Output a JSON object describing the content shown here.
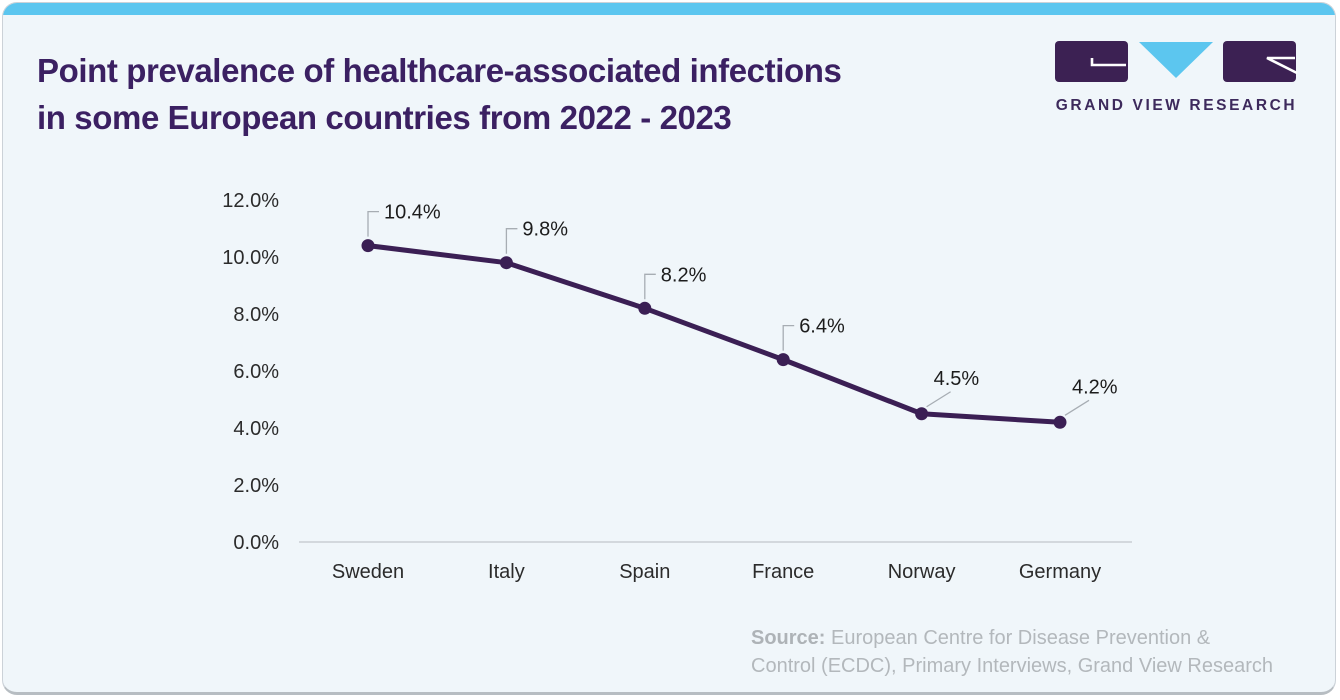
{
  "header": {
    "title": {
      "line1": "Point prevalence of healthcare-associated infections",
      "line2": "in some European countries from 2022 - 2023"
    },
    "logo": {
      "text": "GRAND VIEW RESEARCH"
    }
  },
  "chart_data": {
    "type": "line",
    "title": "Point prevalence of healthcare-associated infections in some European countries from 2022 - 2023",
    "categories": [
      "Sweden",
      "Italy",
      "Spain",
      "France",
      "Norway",
      "Germany"
    ],
    "values": [
      10.4,
      9.8,
      8.2,
      6.4,
      4.5,
      4.2
    ],
    "value_labels": [
      "10.4%",
      "9.8%",
      "8.2%",
      "6.4%",
      "4.5%",
      "4.2%"
    ],
    "y_ticks": [
      "12.0%",
      "10.0%",
      "8.0%",
      "6.0%",
      "4.0%",
      "2.0%",
      "0.0%"
    ],
    "y_tick_values": [
      12,
      10,
      8,
      6,
      4,
      2,
      0
    ],
    "ylim": [
      0,
      12
    ],
    "xlabel": "",
    "ylabel": "",
    "grid": false,
    "legend": "none",
    "label_leader_styles": [
      "elbow",
      "elbow",
      "elbow",
      "elbow",
      "diagonal",
      "diagonal"
    ],
    "line_color": "#3b1f54",
    "marker_color": "#3b1f54",
    "leader_color": "#a7adb3",
    "axis_color": "#c9ced3"
  },
  "source": {
    "line1_prefix": "Source:",
    "line1_rest": " European Centre for Disease Prevention &",
    "line2": "Control (ECDC), Primary Interviews, Grand View Research"
  },
  "colors": {
    "accent_blue": "#5cc6ef",
    "brand_purple": "#3b2062",
    "card_background": "#f0f6fa",
    "source_gray": "#b3b8bc"
  }
}
